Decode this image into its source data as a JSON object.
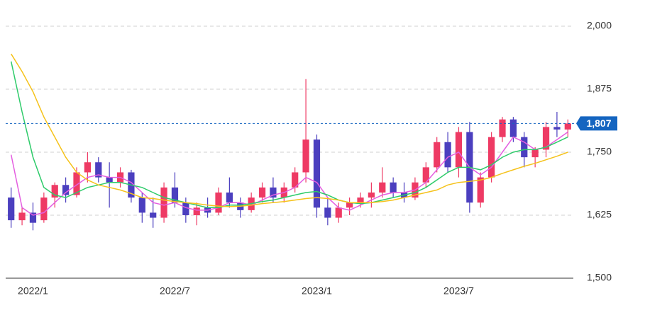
{
  "chart_data": {
    "type": "candlestick",
    "categories": [
      null,
      null,
      "2022/1",
      null,
      null,
      null,
      null,
      null,
      null,
      null,
      null,
      null,
      null,
      null,
      null,
      "2022/7",
      null,
      null,
      null,
      null,
      null,
      null,
      null,
      null,
      null,
      null,
      null,
      null,
      "2023/1",
      null,
      null,
      null,
      null,
      null,
      null,
      null,
      null,
      null,
      null,
      null,
      null,
      "2023/7",
      null,
      null,
      null,
      null,
      null,
      null,
      null,
      null,
      null,
      null
    ],
    "open": [
      1660,
      1615,
      1630,
      1615,
      1660,
      1685,
      1665,
      1710,
      1730,
      1700,
      1690,
      1710,
      1660,
      1630,
      1620,
      1680,
      1650,
      1625,
      1640,
      1630,
      1670,
      1650,
      1635,
      1660,
      1680,
      1660,
      1680,
      1710,
      1775,
      1640,
      1620,
      1640,
      1650,
      1660,
      1670,
      1690,
      1670,
      1660,
      1690,
      1720,
      1770,
      1720,
      1790,
      1650,
      1700,
      1780,
      1815,
      1780,
      1740,
      1755,
      1800,
      1795
    ],
    "high": [
      1680,
      1640,
      1650,
      1670,
      1690,
      1700,
      1720,
      1750,
      1740,
      1730,
      1720,
      1715,
      1670,
      1660,
      1690,
      1710,
      1660,
      1650,
      1660,
      1680,
      1700,
      1660,
      1670,
      1690,
      1700,
      1690,
      1720,
      1895,
      1785,
      1660,
      1650,
      1660,
      1670,
      1690,
      1720,
      1700,
      1690,
      1700,
      1730,
      1780,
      1790,
      1800,
      1810,
      1710,
      1790,
      1820,
      1820,
      1790,
      1760,
      1810,
      1830,
      1815
    ],
    "low": [
      1600,
      1605,
      1595,
      1610,
      1640,
      1650,
      1660,
      1690,
      1690,
      1640,
      1680,
      1650,
      1610,
      1600,
      1610,
      1640,
      1610,
      1605,
      1620,
      1625,
      1640,
      1620,
      1630,
      1650,
      1650,
      1650,
      1670,
      1690,
      1620,
      1605,
      1610,
      1625,
      1640,
      1640,
      1660,
      1660,
      1650,
      1655,
      1680,
      1710,
      1710,
      1700,
      1630,
      1640,
      1690,
      1770,
      1770,
      1720,
      1720,
      1740,
      1780,
      1780
    ],
    "close": [
      1615,
      1630,
      1610,
      1660,
      1685,
      1665,
      1710,
      1730,
      1700,
      1690,
      1710,
      1660,
      1630,
      1620,
      1680,
      1650,
      1625,
      1640,
      1630,
      1670,
      1650,
      1635,
      1660,
      1680,
      1660,
      1680,
      1710,
      1775,
      1640,
      1620,
      1640,
      1650,
      1660,
      1670,
      1690,
      1670,
      1660,
      1690,
      1720,
      1770,
      1720,
      1790,
      1650,
      1700,
      1780,
      1815,
      1780,
      1740,
      1755,
      1800,
      1795,
      1807
    ],
    "up_color": "#ee3a64",
    "down_color": "#4b3fbf",
    "series": [
      {
        "color": "#e45ee0",
        "values": [
          1745,
          1640,
          1625,
          1630,
          1650,
          1670,
          1685,
          1700,
          1705,
          1700,
          1700,
          1690,
          1670,
          1650,
          1645,
          1650,
          1640,
          1635,
          1635,
          1640,
          1650,
          1650,
          1645,
          1655,
          1665,
          1670,
          1680,
          1700,
          1690,
          1660,
          1640,
          1635,
          1645,
          1655,
          1665,
          1670,
          1670,
          1675,
          1690,
          1715,
          1740,
          1750,
          1720,
          1705,
          1720,
          1750,
          1780,
          1770,
          1755,
          1760,
          1775,
          1790
        ]
      },
      {
        "color": "#2ecb6a",
        "values": [
          1930,
          1830,
          1740,
          1680,
          1665,
          1660,
          1670,
          1680,
          1685,
          1690,
          1690,
          1685,
          1680,
          1670,
          1660,
          1655,
          1650,
          1645,
          1640,
          1640,
          1645,
          1645,
          1648,
          1652,
          1655,
          1660,
          1665,
          1670,
          1672,
          1665,
          1655,
          1650,
          1648,
          1650,
          1655,
          1660,
          1665,
          1670,
          1680,
          1695,
          1710,
          1720,
          1720,
          1715,
          1725,
          1740,
          1750,
          1755,
          1755,
          1760,
          1770,
          1780
        ]
      },
      {
        "color": "#f5c21b",
        "values": [
          1945,
          1910,
          1870,
          1820,
          1780,
          1740,
          1710,
          1695,
          1685,
          1680,
          1675,
          1668,
          1660,
          1658,
          1655,
          1652,
          1650,
          1648,
          1645,
          1643,
          1642,
          1643,
          1645,
          1648,
          1650,
          1652,
          1655,
          1658,
          1660,
          1658,
          1655,
          1650,
          1650,
          1650,
          1652,
          1655,
          1660,
          1665,
          1670,
          1675,
          1685,
          1690,
          1692,
          1695,
          1700,
          1708,
          1715,
          1722,
          1728,
          1735,
          1742,
          1750
        ]
      }
    ],
    "ylim": [
      1500,
      2000
    ],
    "yticks": [
      {
        "value": 1500,
        "label": "1,500"
      },
      {
        "value": 1625,
        "label": "1,625"
      },
      {
        "value": 1750,
        "label": "1,750"
      },
      {
        "value": 1875,
        "label": "1,875"
      },
      {
        "value": 2000,
        "label": "2,000"
      }
    ],
    "grid": true,
    "last_price": {
      "value": 1807,
      "label": "1,807"
    },
    "last_price_color": "#1565c0"
  }
}
